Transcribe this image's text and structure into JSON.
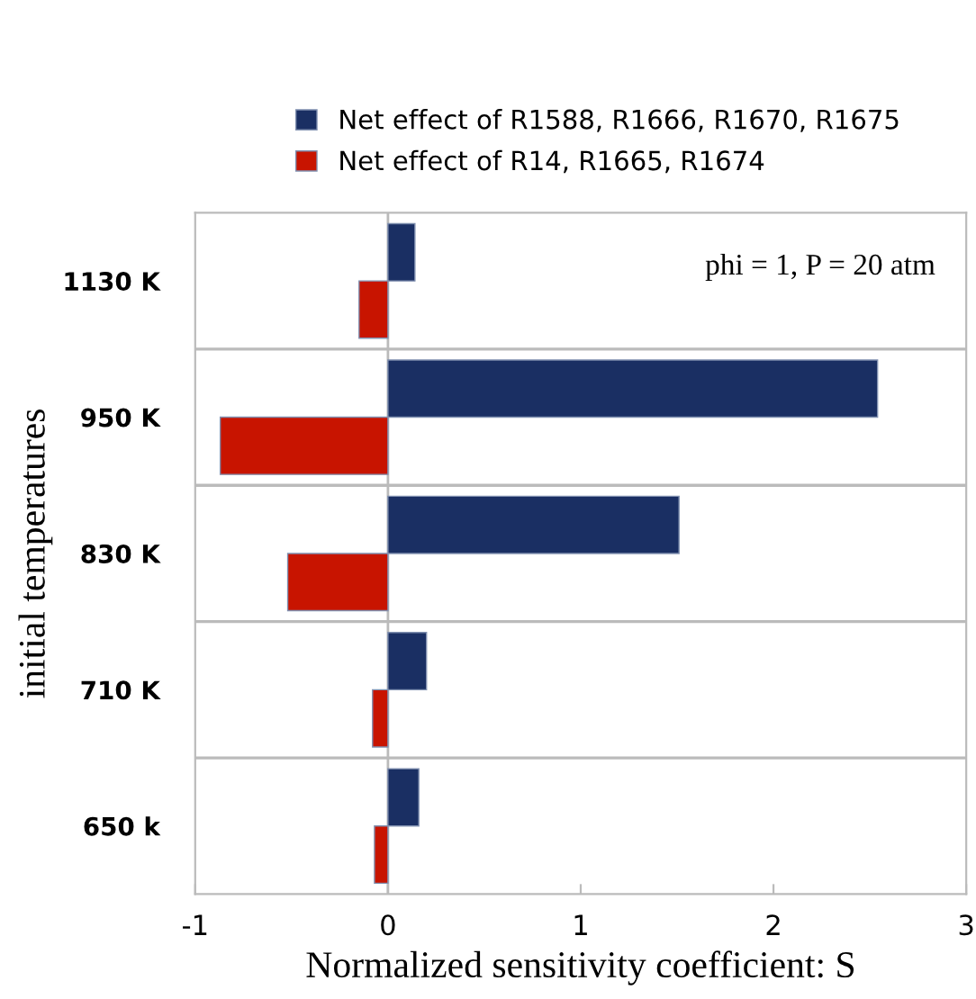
{
  "chart_data": {
    "type": "bar",
    "orientation": "horizontal",
    "categories": [
      "1130 K",
      "950 K",
      "830 K",
      "710 K",
      "650 k"
    ],
    "series": [
      {
        "name": "Net effect of R1588, R1666, R1670, R1675",
        "color": "#1a2f63",
        "values": [
          0.14,
          2.54,
          1.51,
          0.2,
          0.16
        ]
      },
      {
        "name": "Net effect of R14, R1665, R1674",
        "color": "#c81400",
        "values": [
          -0.15,
          -0.87,
          -0.52,
          -0.08,
          -0.07
        ]
      }
    ],
    "xlim": [
      -1,
      3
    ],
    "xticks": [
      -1,
      0,
      1,
      2,
      3
    ],
    "xlabel": "Normalized sensitivity coefficient: S",
    "ylabel": "initial temperatures",
    "annotations": [
      "phi = 1, P = 20 atm"
    ],
    "grid": "y",
    "legend": "top"
  }
}
